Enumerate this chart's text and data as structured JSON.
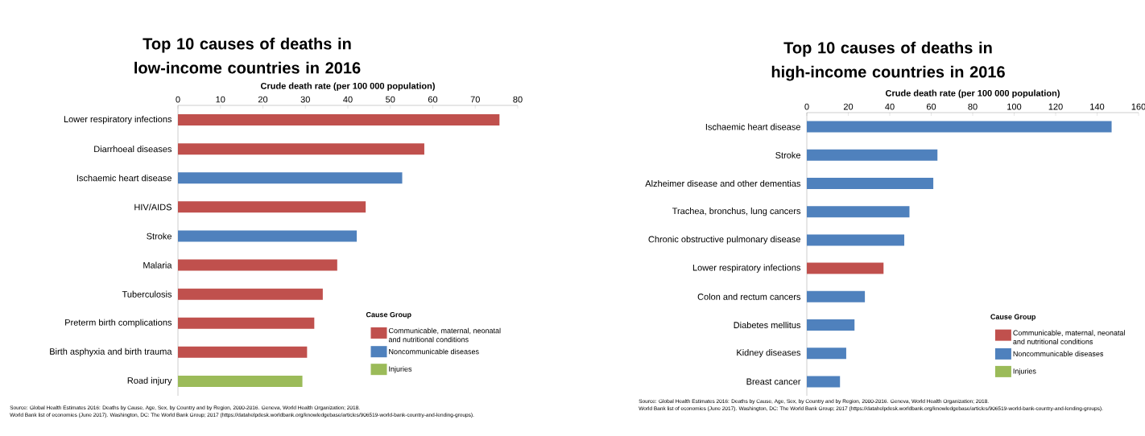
{
  "chart_data": [
    {
      "type": "bar",
      "orientation": "horizontal",
      "title": "Top 10 causes of deaths in low-income countries in 2016",
      "xlabel": "Crude death rate (per 100 000 population)",
      "categories": [
        "Lower respiratory infections",
        "Diarrhoeal diseases",
        "Ischaemic heart disease",
        "HIV/AIDS",
        "Stroke",
        "Malaria",
        "Tuberculosis",
        "Preterm birth complications",
        "Birth asphyxia and birth trauma",
        "Road injury"
      ],
      "series": [
        {
          "name": "Communicable, maternal, neonatal and nutritional conditions",
          "color": "#c0504d",
          "values": [
            75.7,
            58,
            null,
            44.2,
            null,
            37.5,
            34.1,
            32.1,
            30.4,
            null
          ]
        },
        {
          "name": "Noncommunicable diseases",
          "color": "#4f81bd",
          "values": [
            null,
            null,
            52.8,
            null,
            42.1,
            null,
            null,
            null,
            null,
            null
          ]
        },
        {
          "name": "Injuries",
          "color": "#9bbb59",
          "values": [
            null,
            null,
            null,
            null,
            null,
            null,
            null,
            null,
            null,
            29.3
          ]
        }
      ],
      "xlim": [
        0,
        80
      ],
      "xticks": [
        0,
        10,
        20,
        30,
        40,
        50,
        60,
        70,
        80
      ],
      "legend": "bottom right",
      "legend_title": "Cause Group",
      "annotations": [
        "Source: Global Health Estimates 2016: Deaths by Cause, Age, Sex, by Country and by Region, 2000-2016. Geneva, World Health Organization; 2018.",
        "World Bank list of economies (June 2017). Washington, DC: The World Bank Group; 2017 (https://datahelpdesk.worldbank.org/knowledgebase/articles/906519-world-bank-country-and-lending-groups)."
      ]
    },
    {
      "type": "bar",
      "orientation": "horizontal",
      "title": "Top 10 causes of deaths in high-income countries in 2016",
      "xlabel": "Crude death rate (per 100 000 population)",
      "categories": [
        "Ischaemic heart disease",
        "Stroke",
        "Alzheimer disease and other dementias",
        "Trachea, bronchus, lung cancers",
        "Chronic obstructive pulmonary disease",
        "Lower respiratory infections",
        "Colon and rectum cancers",
        "Diabetes mellitus",
        "Kidney diseases",
        "Breast cancer"
      ],
      "series": [
        {
          "name": "Communicable, maternal, neonatal and nutritional conditions",
          "color": "#c0504d",
          "values": [
            null,
            null,
            null,
            null,
            null,
            37,
            null,
            null,
            null,
            null
          ]
        },
        {
          "name": "Noncommunicable diseases",
          "color": "#4f81bd",
          "values": [
            147,
            63,
            61,
            49.5,
            47,
            null,
            28,
            23,
            19,
            16
          ]
        },
        {
          "name": "Injuries",
          "color": "#9bbb59",
          "values": [
            null,
            null,
            null,
            null,
            null,
            null,
            null,
            null,
            null,
            null
          ]
        }
      ],
      "xlim": [
        0,
        160
      ],
      "xticks": [
        0,
        20,
        40,
        60,
        80,
        100,
        120,
        140,
        160
      ],
      "legend": "bottom right",
      "legend_title": "Cause Group",
      "annotations": [
        "Source: Global Health Estimates 2016: Deaths by Cause, Age, Sex, by Country and by Region, 2000-2016. Geneva, World Health Organization; 2018.",
        "World Bank list of economies (June 2017). Washington, DC: The World Bank Group; 2017 (https://datahelpdesk.worldbank.org/knowledgebase/articles/906519-world-bank-country-and-lending-groups)."
      ]
    }
  ]
}
